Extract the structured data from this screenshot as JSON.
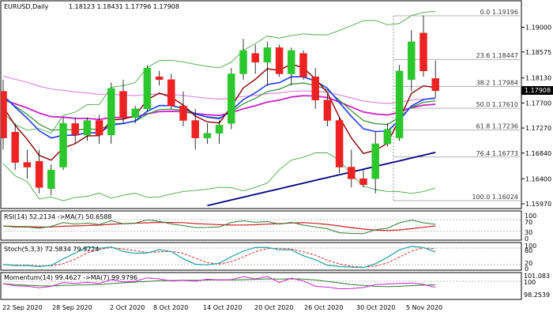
{
  "header": {
    "symbol": "EURUSD,Daily",
    "ohlc": "1.18123 1.18431 1.17796 1.17908"
  },
  "price_badge": "1.17908",
  "price_axis_labels": [
    "1.19000",
    "1.18575",
    "1.18130",
    "1.17700",
    "1.17270",
    "1.16840",
    "1.16400",
    "1.15970"
  ],
  "fib_levels": [
    {
      "label": "0.0 1.19196",
      "value": 1.19196
    },
    {
      "label": "23.6 1.18447",
      "value": 1.18447
    },
    {
      "label": "38.2 1.17984",
      "value": 1.17984
    },
    {
      "label": "50.0 1.17610",
      "value": 1.1761
    },
    {
      "label": "61.8 1.17236",
      "value": 1.17236
    },
    {
      "label": "76.4 1.16773",
      "value": 1.16773
    },
    {
      "label": "100.0 1.16024",
      "value": 1.16024
    }
  ],
  "date_labels": [
    "22 Sep 2020",
    "28 Sep 2020",
    "2 Oct 2020",
    "8 Oct 2020",
    "14 Oct 2020",
    "20 Oct 2020",
    "26 Oct 2020",
    "30 Oct 2020",
    "5 Nov 2020"
  ],
  "rsi": {
    "label": "RSI(14) 52.2134  ->MA(7) 50.6588",
    "axis_labels": [
      "100",
      "70",
      "30",
      "0"
    ]
  },
  "stoch": {
    "label": "Stoch(5,3,3) 72.5834 79.9224",
    "axis_labels": [
      "100",
      "80",
      "20",
      "0"
    ]
  },
  "momentum": {
    "label": "Momentum(14) 99.4627  ->MA(7) 99.9796",
    "axis_labels": [
      "101.083",
      "100",
      "98.2539"
    ]
  },
  "colors": {
    "bull": "#2cc72c",
    "bear": "#ee2222",
    "ma_maroon": "#8b0000",
    "ma_green": "#2e8b2e",
    "ma_blue": "#1e3cff",
    "ma_magenta": "#cc22cc",
    "ma_navy": "#000080",
    "ma_pink": "#dd88dd",
    "bollinger": "#44aa44"
  },
  "chart_data": {
    "type": "candlestick",
    "ylim": [
      1.1597,
      1.1925
    ],
    "candles": [
      {
        "o": 1.179,
        "h": 1.181,
        "l": 1.169,
        "c": 1.171
      },
      {
        "o": 1.172,
        "h": 1.1735,
        "l": 1.1655,
        "c": 1.1668
      },
      {
        "o": 1.1668,
        "h": 1.169,
        "l": 1.164,
        "c": 1.166
      },
      {
        "o": 1.167,
        "h": 1.169,
        "l": 1.1615,
        "c": 1.1625
      },
      {
        "o": 1.1623,
        "h": 1.1665,
        "l": 1.1612,
        "c": 1.1655
      },
      {
        "o": 1.166,
        "h": 1.1745,
        "l": 1.1655,
        "c": 1.1735
      },
      {
        "o": 1.1735,
        "h": 1.1745,
        "l": 1.17,
        "c": 1.1715
      },
      {
        "o": 1.1715,
        "h": 1.1745,
        "l": 1.1705,
        "c": 1.174
      },
      {
        "o": 1.174,
        "h": 1.175,
        "l": 1.17,
        "c": 1.1715
      },
      {
        "o": 1.1715,
        "h": 1.1805,
        "l": 1.17,
        "c": 1.1795
      },
      {
        "o": 1.179,
        "h": 1.181,
        "l": 1.1735,
        "c": 1.1745
      },
      {
        "o": 1.1745,
        "h": 1.1765,
        "l": 1.1735,
        "c": 1.176
      },
      {
        "o": 1.176,
        "h": 1.1835,
        "l": 1.1755,
        "c": 1.183
      },
      {
        "o": 1.1815,
        "h": 1.1825,
        "l": 1.18,
        "c": 1.181
      },
      {
        "o": 1.181,
        "h": 1.182,
        "l": 1.176,
        "c": 1.1765
      },
      {
        "o": 1.1765,
        "h": 1.179,
        "l": 1.173,
        "c": 1.174
      },
      {
        "o": 1.174,
        "h": 1.176,
        "l": 1.169,
        "c": 1.171
      },
      {
        "o": 1.171,
        "h": 1.1735,
        "l": 1.17,
        "c": 1.1718
      },
      {
        "o": 1.1718,
        "h": 1.174,
        "l": 1.17,
        "c": 1.1732
      },
      {
        "o": 1.1735,
        "h": 1.183,
        "l": 1.1725,
        "c": 1.182
      },
      {
        "o": 1.182,
        "h": 1.188,
        "l": 1.181,
        "c": 1.186
      },
      {
        "o": 1.1855,
        "h": 1.187,
        "l": 1.182,
        "c": 1.184
      },
      {
        "o": 1.184,
        "h": 1.1875,
        "l": 1.18,
        "c": 1.1865
      },
      {
        "o": 1.1865,
        "h": 1.187,
        "l": 1.1815,
        "c": 1.182
      },
      {
        "o": 1.182,
        "h": 1.1865,
        "l": 1.18,
        "c": 1.186
      },
      {
        "o": 1.1855,
        "h": 1.186,
        "l": 1.181,
        "c": 1.1815
      },
      {
        "o": 1.1815,
        "h": 1.183,
        "l": 1.176,
        "c": 1.1775
      },
      {
        "o": 1.1775,
        "h": 1.1785,
        "l": 1.173,
        "c": 1.174
      },
      {
        "o": 1.174,
        "h": 1.1745,
        "l": 1.165,
        "c": 1.166
      },
      {
        "o": 1.166,
        "h": 1.169,
        "l": 1.1625,
        "c": 1.164
      },
      {
        "o": 1.164,
        "h": 1.1655,
        "l": 1.1625,
        "c": 1.163
      },
      {
        "o": 1.164,
        "h": 1.172,
        "l": 1.1615,
        "c": 1.17
      },
      {
        "o": 1.17,
        "h": 1.1735,
        "l": 1.1695,
        "c": 1.1725
      },
      {
        "o": 1.171,
        "h": 1.1835,
        "l": 1.1705,
        "c": 1.1825
      },
      {
        "o": 1.181,
        "h": 1.1895,
        "l": 1.179,
        "c": 1.1875
      },
      {
        "o": 1.189,
        "h": 1.192,
        "l": 1.1815,
        "c": 1.1825
      },
      {
        "o": 1.1812,
        "h": 1.1843,
        "l": 1.178,
        "c": 1.1791
      }
    ]
  }
}
